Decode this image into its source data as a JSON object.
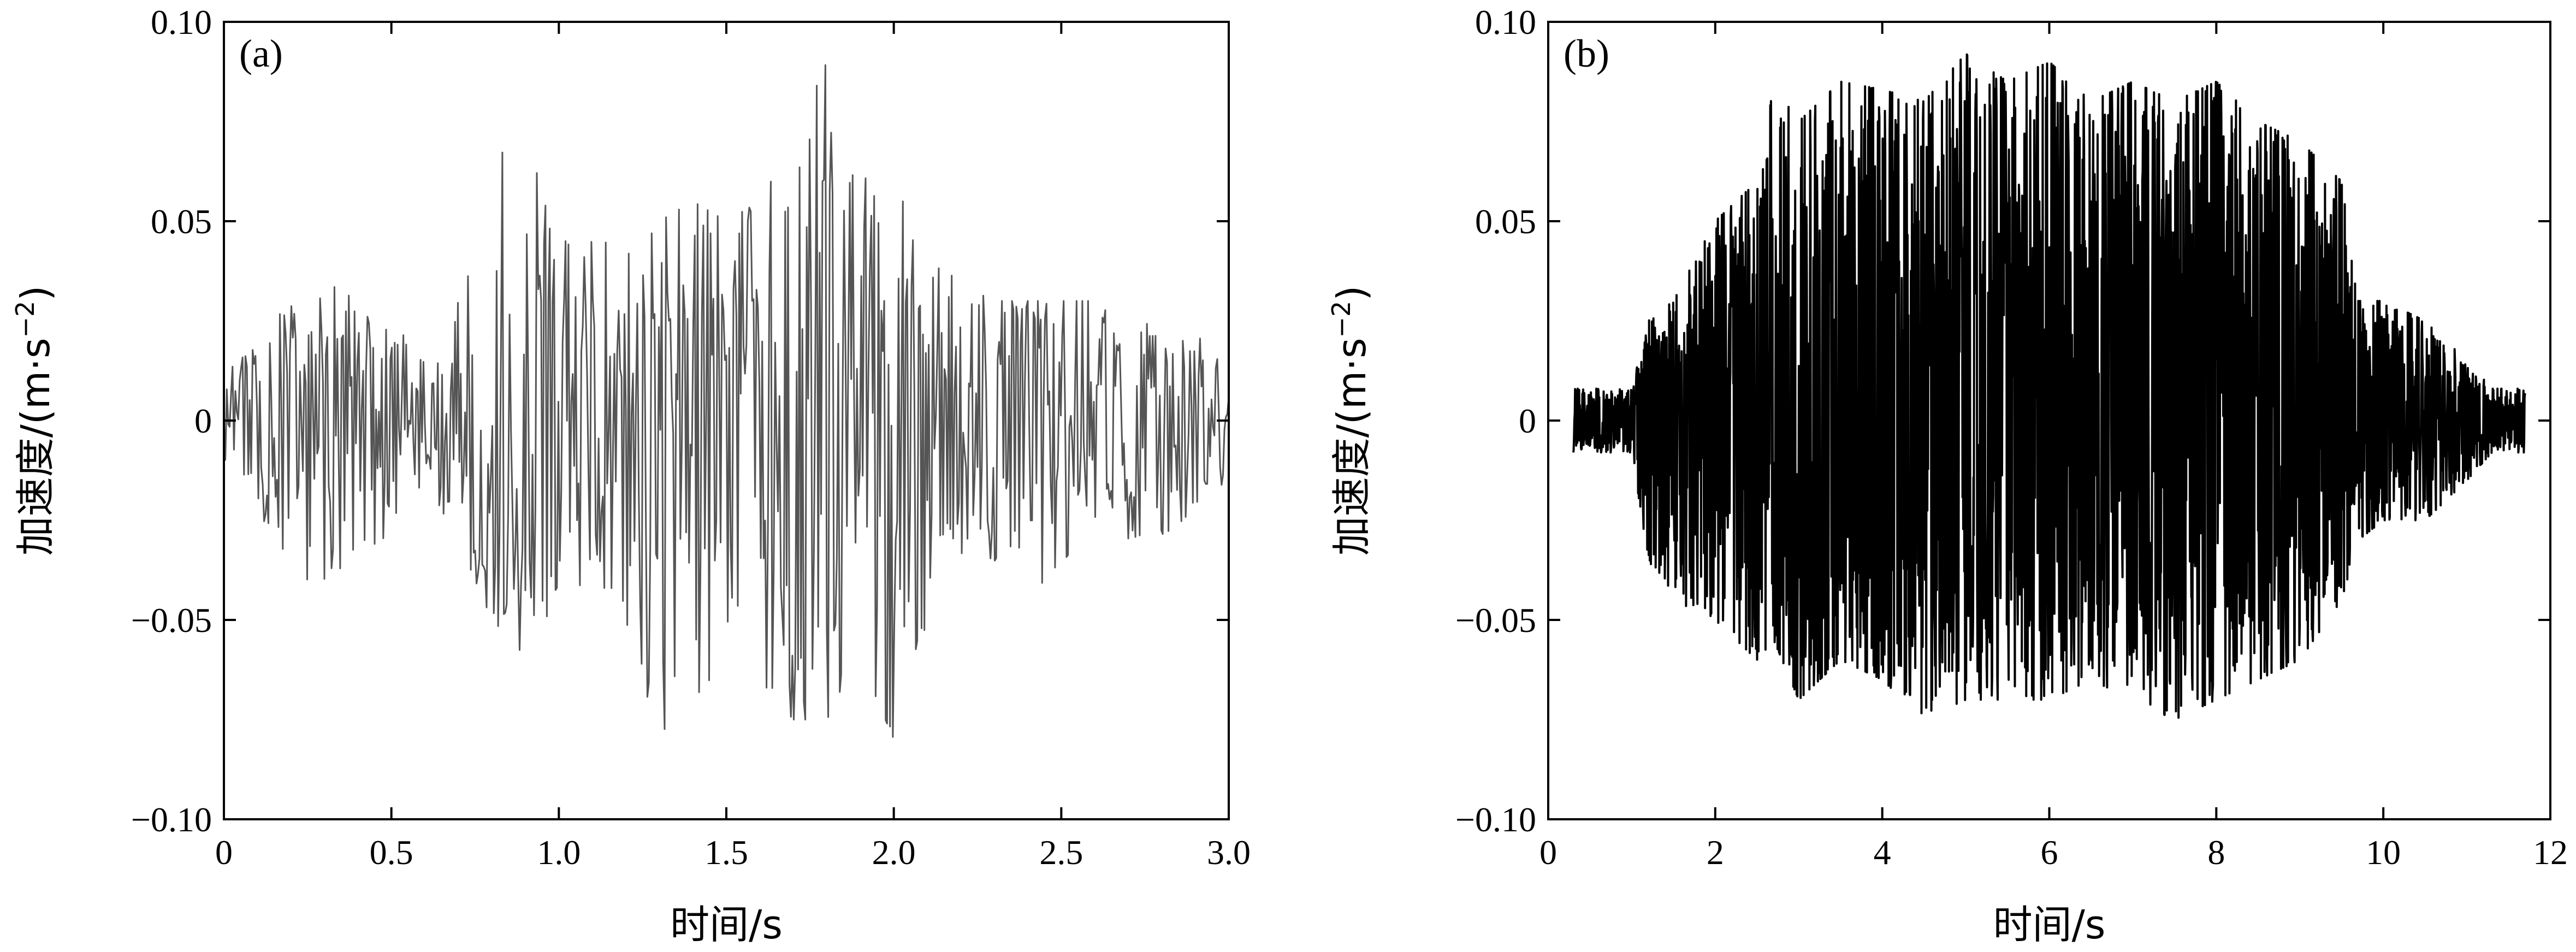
{
  "chart_data": [
    {
      "type": "line",
      "panel_label": "(a)",
      "xlabel": "时间/s",
      "ylabel": "加速度/(m·s",
      "ylabel_sup": "−2",
      "ylabel_close": ")",
      "xlim": [
        0,
        3.0
      ],
      "ylim": [
        -0.1,
        0.1
      ],
      "xticks": [
        0,
        0.5,
        1.0,
        1.5,
        2.0,
        2.5,
        3.0
      ],
      "xtick_labels": [
        "0",
        "0.5",
        "1.0",
        "1.5",
        "2.0",
        "2.5",
        "3.0"
      ],
      "yticks": [
        -0.1,
        -0.05,
        0,
        0.05,
        0.1
      ],
      "ytick_labels": [
        "−0.10",
        "−0.05",
        "0",
        "0.05",
        "0.10"
      ],
      "grid": false,
      "series_color": "#555555",
      "envelope": {
        "x": [
          0,
          0.1,
          0.2,
          0.3,
          0.4,
          0.5,
          0.6,
          0.7,
          0.8,
          0.9,
          1.0,
          1.1,
          1.2,
          1.3,
          1.4,
          1.5,
          1.6,
          1.7,
          1.8,
          1.9,
          2.0,
          2.1,
          2.2,
          2.3,
          2.4,
          2.5,
          2.6,
          2.7,
          2.8,
          2.9,
          3.0
        ],
        "upper": [
          0.012,
          0.02,
          0.03,
          0.035,
          0.03,
          0.025,
          0.015,
          0.03,
          0.06,
          0.083,
          0.045,
          0.045,
          0.045,
          0.05,
          0.055,
          0.05,
          0.055,
          0.07,
          0.09,
          0.06,
          0.065,
          0.04,
          0.035,
          0.03,
          0.03,
          0.03,
          0.03,
          0.025,
          0.025,
          0.022,
          0.012
        ],
        "lower": [
          -0.01,
          -0.025,
          -0.035,
          -0.045,
          -0.035,
          -0.03,
          -0.015,
          -0.03,
          -0.05,
          -0.062,
          -0.045,
          -0.04,
          -0.05,
          -0.08,
          -0.07,
          -0.06,
          -0.065,
          -0.075,
          -0.075,
          -0.06,
          -0.08,
          -0.05,
          -0.04,
          -0.035,
          -0.045,
          -0.035,
          -0.03,
          -0.03,
          -0.03,
          -0.025,
          -0.015
        ]
      }
    },
    {
      "type": "line",
      "panel_label": "(b)",
      "xlabel": "时间/s",
      "ylabel": "加速度/(m·s",
      "ylabel_sup": "−2",
      "ylabel_close": ")",
      "xlim": [
        0,
        12
      ],
      "ylim": [
        -0.1,
        0.1
      ],
      "xticks": [
        0,
        2,
        4,
        6,
        8,
        10,
        12
      ],
      "xtick_labels": [
        "0",
        "2",
        "4",
        "6",
        "8",
        "10",
        "12"
      ],
      "yticks": [
        -0.1,
        -0.05,
        0,
        0.05,
        0.1
      ],
      "ytick_labels": [
        "−0.10",
        "−0.05",
        "0",
        "0.05",
        "0.10"
      ],
      "grid": false,
      "series_color": "#000000",
      "envelope": {
        "x": [
          0.3,
          0.5,
          1.0,
          1.2,
          1.5,
          2.0,
          2.5,
          2.7,
          3.0,
          3.5,
          4.0,
          4.5,
          5.0,
          5.5,
          6.0,
          6.5,
          7.0,
          7.5,
          8.0,
          8.5,
          9.0,
          9.5,
          9.7,
          10.0,
          10.5,
          11.0,
          11.3,
          11.7
        ],
        "upper": [
          0.008,
          0.008,
          0.008,
          0.025,
          0.03,
          0.05,
          0.06,
          0.084,
          0.075,
          0.085,
          0.083,
          0.08,
          0.092,
          0.085,
          0.09,
          0.08,
          0.085,
          0.08,
          0.085,
          0.075,
          0.07,
          0.06,
          0.03,
          0.03,
          0.025,
          0.015,
          0.008,
          0.008
        ],
        "lower": [
          -0.008,
          -0.008,
          -0.008,
          -0.035,
          -0.045,
          -0.05,
          -0.06,
          -0.055,
          -0.07,
          -0.06,
          -0.065,
          -0.075,
          -0.07,
          -0.07,
          -0.07,
          -0.065,
          -0.07,
          -0.075,
          -0.07,
          -0.065,
          -0.06,
          -0.045,
          -0.03,
          -0.025,
          -0.025,
          -0.015,
          -0.008,
          -0.008
        ]
      }
    }
  ]
}
